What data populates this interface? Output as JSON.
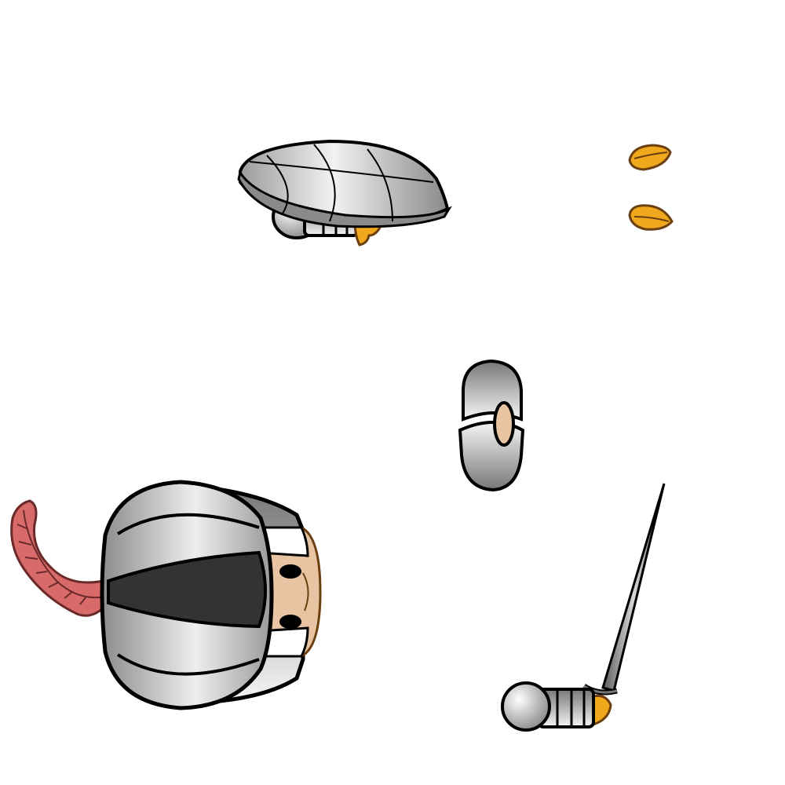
{
  "sprite_sheet": {
    "parts": [
      {
        "id": "shield-arm",
        "icon": "shield-arm-icon"
      },
      {
        "id": "feet",
        "icon": "feet-icon"
      },
      {
        "id": "torso",
        "icon": "torso-icon"
      },
      {
        "id": "helmet-head",
        "icon": "helmet-head-icon"
      },
      {
        "id": "sword-arm",
        "icon": "sword-arm-icon"
      }
    ],
    "colors": {
      "outline": "#000000",
      "armor_dark": "#8a8a8a",
      "armor_light": "#f2f2f2",
      "cloth": "#333333",
      "skin": "#e8c4a2",
      "gold": "#f0a81c",
      "gold_outline": "#6b3f10",
      "feather": "#d96a6a",
      "blade": "#9a9a9a"
    }
  }
}
